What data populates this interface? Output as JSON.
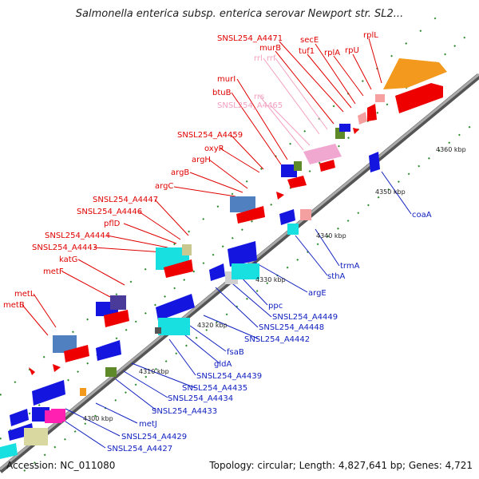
{
  "title": "Salmonella enterica subsp. enterica serovar Newport str. SL2...",
  "footer": {
    "accession": "Accession: NC_011080",
    "summary": "Topology: circular; Length: 4,827,641 bp; Genes: 4,721"
  },
  "ticks": [
    "4300 kbp",
    "4310 kbp",
    "4320 kbp",
    "4330 kbp",
    "4340 kbp",
    "4350 kbp",
    "4360 kbp"
  ],
  "labels_forward": [
    "SNSL254_A4471",
    "murB",
    "secE",
    "tuf1",
    "rplA",
    "rpU",
    "rplL",
    "murI",
    "btuB",
    "SNSL254_A4459",
    "oxyR",
    "argH",
    "argB",
    "argC",
    "SNSL254_A4447",
    "SNSL254_A4446",
    "pflD",
    "SNSL254_A4444",
    "SNSL254_A4443",
    "katG",
    "metF",
    "metL",
    "metB"
  ],
  "labels_rna": [
    "rrl",
    "rrf",
    "rrs",
    "SNSL254_A4465"
  ],
  "labels_reverse": [
    "coaA",
    "trmA",
    "sthA",
    "argE",
    "ppc",
    "SNSL254_A4449",
    "SNSL254_A4448",
    "SNSL254_A4442",
    "fsaB",
    "gldA",
    "SNSL254_A4439",
    "SNSL254_A4435",
    "SNSL254_A4434",
    "SNSL254_A4433",
    "metJ",
    "SNSL254_A4429",
    "SNSL254_A4427"
  ],
  "colors": {
    "forward_label": "#e00000",
    "reverse_label": "#1020c0",
    "rna_label": "#f08ab0",
    "forward_cds": "#ee0000",
    "reverse_cds": "#1515e0",
    "backbone": "#8a8a8a",
    "tick_green": "#1a8a1a"
  }
}
